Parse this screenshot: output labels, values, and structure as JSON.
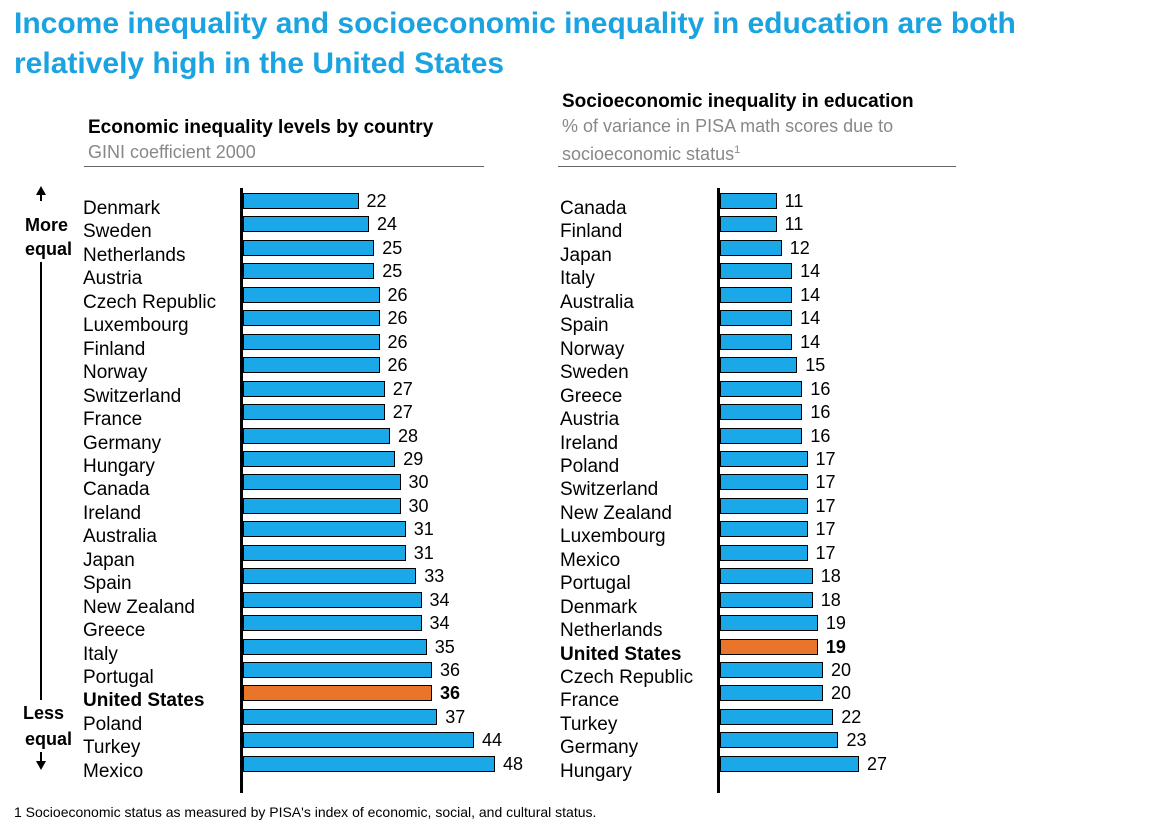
{
  "title": "Income inequality and socioeconomic inequality in education are both relatively high in the United States",
  "side": {
    "top_line1": "More",
    "top_line2": "equal",
    "bottom_line1": "Less",
    "bottom_line2": "equal"
  },
  "footnote": "1 Socioeconomic status as measured by PISA's index of economic, social, and cultural status.",
  "colors": {
    "bar": "#1ba8e8",
    "highlight": "#e8752a",
    "title": "#1aa3e0"
  },
  "chart_data": [
    {
      "type": "bar",
      "orientation": "horizontal",
      "title": "Economic inequality levels by country",
      "subtitle": "GINI coefficient 2000",
      "highlight": "United States",
      "categories": [
        "Denmark",
        "Sweden",
        "Netherlands",
        "Austria",
        "Czech Republic",
        "Luxembourg",
        "Finland",
        "Norway",
        "Switzerland",
        "France",
        "Germany",
        "Hungary",
        "Canada",
        "Ireland",
        "Australia",
        "Japan",
        "Spain",
        "New Zealand",
        "Greece",
        "Italy",
        "Portugal",
        "United States",
        "Poland",
        "Turkey",
        "Mexico"
      ],
      "values": [
        22,
        24,
        25,
        25,
        26,
        26,
        26,
        26,
        27,
        27,
        28,
        29,
        30,
        30,
        31,
        31,
        33,
        34,
        34,
        35,
        36,
        36,
        37,
        44,
        48
      ]
    },
    {
      "type": "bar",
      "orientation": "horizontal",
      "title": "Socioeconomic inequality in education",
      "subtitle": "% of variance in PISA math scores due to socioeconomic status",
      "subtitle_sup": "1",
      "highlight": "United States",
      "categories": [
        "Canada",
        "Finland",
        "Japan",
        "Italy",
        "Australia",
        "Spain",
        "Norway",
        "Sweden",
        "Greece",
        "Austria",
        "Ireland",
        "Poland",
        "Switzerland",
        "New Zealand",
        "Luxembourg",
        "Mexico",
        "Portugal",
        "Denmark",
        "Netherlands",
        "United States",
        "Czech Republic",
        "France",
        "Turkey",
        "Germany",
        "Hungary"
      ],
      "values": [
        11,
        11,
        12,
        14,
        14,
        14,
        14,
        15,
        16,
        16,
        16,
        17,
        17,
        17,
        17,
        17,
        18,
        18,
        19,
        19,
        20,
        20,
        22,
        23,
        27
      ]
    }
  ]
}
